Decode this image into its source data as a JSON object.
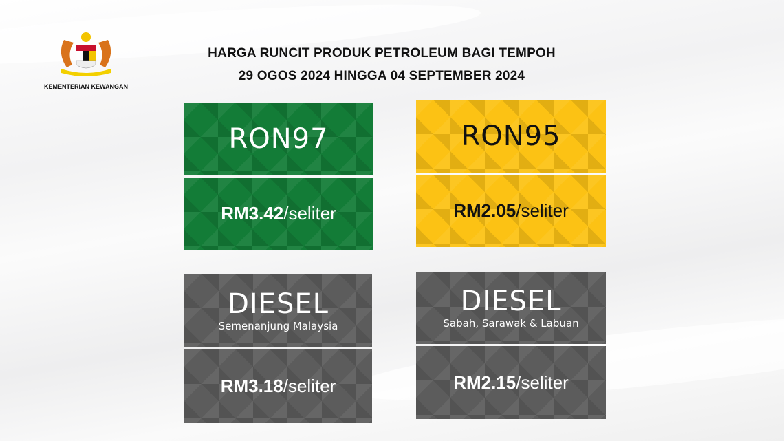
{
  "logo": {
    "label": "KEMENTERIAN KEWANGAN"
  },
  "title": {
    "line1": "HARGA RUNCIT PRODUK PETROLEUM BAGI TEMPOH",
    "line2": "29 OGOS 2024 HINGGA 04 SEPTEMBER 2024"
  },
  "cards": [
    {
      "name": "RON97",
      "subtitle": "",
      "price": "RM3.42",
      "unit": "/seliter",
      "color": "#137c37"
    },
    {
      "name": "RON95",
      "subtitle": "",
      "price": "RM2.05",
      "unit": "/seliter",
      "color": "#fcc214"
    },
    {
      "name": "DIESEL",
      "subtitle": "Semenanjung Malaysia",
      "price": "RM3.18",
      "unit": "/seliter",
      "color": "#5c5c5c"
    },
    {
      "name": "DIESEL",
      "subtitle": "Sabah, Sarawak & Labuan",
      "price": "RM2.15",
      "unit": "/seliter",
      "color": "#5c5c5c"
    }
  ]
}
